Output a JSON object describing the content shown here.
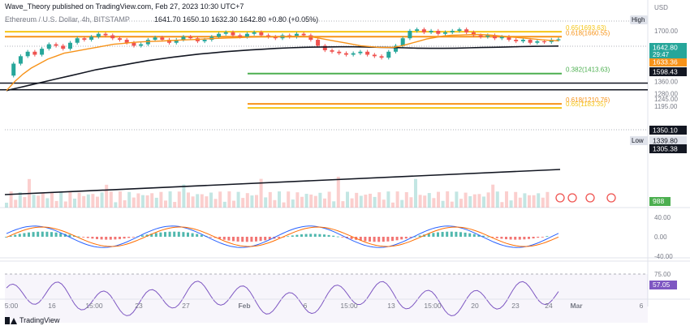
{
  "header": {
    "publisher": "Wave_Theory published on TradingView.com, Feb 27, 2023 10:30 UTC+7",
    "symbol": "Ethereum / U.S. Dollar, 4h, BITSTAMP",
    "ohlc": "1641.70  1650.10  1632.30  1642.80  +0.80 (+0.05%)"
  },
  "brand": {
    "name": "TradingView"
  },
  "colors": {
    "up": "#26a69a",
    "down": "#ef5350",
    "ema50": "#f7931a",
    "ema200": "#131722",
    "fib_gold": "#f5c518",
    "fib_orange": "#f7931a",
    "fib_green": "#4caf50",
    "macd": "#2962ff",
    "signal": "#ff6d00",
    "rsi": "#7e57c2",
    "vol_badge": "#4caf50"
  },
  "chart_data": {
    "type": "candlestick",
    "symbol": "ETHUSD",
    "timeframe": "4h",
    "x_ticks": [
      "5:00",
      "16",
      "15:00",
      "23",
      "27",
      "Feb",
      "6",
      "15:00",
      "13",
      "15:00",
      "20",
      "23",
      "24",
      "Mar",
      "6"
    ],
    "y_ticks": [
      1700.0,
      1600.0,
      1520.0,
      1440.0,
      1360.0,
      1280.0,
      1245.0,
      1195.0
    ],
    "last_price": 1642.8,
    "countdown": "29:47",
    "price_labels": [
      {
        "label": "1642.80",
        "value": 1642.8,
        "style": "green"
      },
      {
        "label": "1633.36",
        "value": 1633.36,
        "style": "orange"
      },
      {
        "label": "1598.43",
        "value": 1598.43,
        "style": "dark"
      },
      {
        "label": "1350.10",
        "value": 1350.1,
        "style": "dark"
      },
      {
        "label": "1339.80",
        "value": 1339.8,
        "style": "low"
      },
      {
        "label": "1305.38",
        "value": 1305.38,
        "style": "dark"
      }
    ],
    "price_marker_labels": {
      "high": "High",
      "low": "Low",
      "currency": "USD"
    },
    "horizontal_lines": [
      {
        "value": 1693.63,
        "label": "0.65(1693.63)",
        "color": "fib_gold"
      },
      {
        "value": 1660.55,
        "label": "0.618(1660.55)",
        "color": "fib_orange"
      },
      {
        "value": 1413.63,
        "label": "0.382(1413.63)",
        "color": "fib_green"
      },
      {
        "value": 1350.1,
        "label": "",
        "color": "dark"
      },
      {
        "value": 1305.38,
        "label": "",
        "color": "dark"
      },
      {
        "value": 1210.76,
        "label": "0.618(1210.76)",
        "color": "fib_orange"
      },
      {
        "value": 1183.35,
        "label": "0.65(1183.35)",
        "color": "fib_gold"
      }
    ],
    "volume_label": "988",
    "macd": {
      "y_ticks": [
        40.0,
        0.0,
        -40.0
      ]
    },
    "rsi": {
      "y_ticks": [
        75.0,
        57.05
      ],
      "value": 57.05
    },
    "price_path": [
      1400,
      1480,
      1530,
      1560,
      1540,
      1580,
      1610,
      1600,
      1580,
      1620,
      1650,
      1640,
      1660,
      1680,
      1670,
      1650,
      1640,
      1620,
      1600,
      1610,
      1640,
      1655,
      1640,
      1620,
      1640,
      1660,
      1650,
      1630,
      1640,
      1660,
      1680,
      1690,
      1670,
      1660,
      1680,
      1690,
      1670,
      1660,
      1650,
      1670,
      1660,
      1680,
      1670,
      1640,
      1600,
      1570,
      1560,
      1550,
      1540,
      1550,
      1560,
      1540,
      1530,
      1520,
      1560,
      1600,
      1650,
      1700,
      1710,
      1690,
      1700,
      1680,
      1690,
      1700,
      1710,
      1690,
      1670,
      1660,
      1670,
      1650,
      1660,
      1640,
      1630,
      1640,
      1620,
      1630,
      1625,
      1640,
      1643
    ],
    "ema50_path": [
      1300,
      1360,
      1410,
      1450,
      1480,
      1510,
      1530,
      1550,
      1560,
      1570,
      1580,
      1590,
      1600,
      1610,
      1615,
      1620,
      1625,
      1628,
      1630,
      1632,
      1635,
      1638,
      1640,
      1642,
      1645,
      1648,
      1650,
      1652,
      1654,
      1656,
      1658,
      1660,
      1660,
      1661,
      1662,
      1663,
      1662,
      1660,
      1650,
      1640,
      1630,
      1620,
      1610,
      1600,
      1595,
      1590,
      1588,
      1590,
      1600,
      1615,
      1630,
      1645,
      1655,
      1665,
      1670,
      1672,
      1674,
      1676,
      1674,
      1670,
      1665,
      1660,
      1655,
      1650,
      1645,
      1640,
      1636,
      1633
    ],
    "ema200_path": [
      1300,
      1320,
      1340,
      1360,
      1380,
      1400,
      1420,
      1440,
      1455,
      1470,
      1485,
      1500,
      1512,
      1524,
      1534,
      1544,
      1552,
      1560,
      1566,
      1572,
      1577,
      1582,
      1586,
      1589,
      1591,
      1592,
      1593,
      1593,
      1592,
      1590,
      1588,
      1586,
      1584,
      1583,
      1583,
      1584,
      1586,
      1588,
      1590,
      1592,
      1594,
      1596,
      1597,
      1598
    ]
  }
}
